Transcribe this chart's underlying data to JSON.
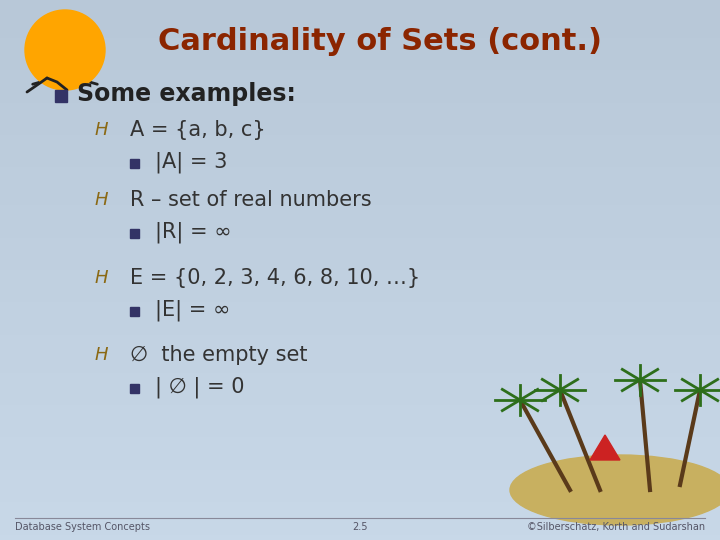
{
  "title": "Cardinality of Sets (cont.)",
  "title_color": "#8B2500",
  "title_fontsize": 22,
  "bg_color_top": "#b8c8d8",
  "bg_color_bottom": "#c8d8e8",
  "bullet1_text": "Some examples:",
  "bullet1_color": "#222222",
  "bullet1_fontsize": 17,
  "items": [
    {
      "level": 1,
      "text": "A = {a, b, c}",
      "color": "#333333",
      "fontsize": 15
    },
    {
      "level": 2,
      "text": "|A| = 3",
      "color": "#333333",
      "fontsize": 15
    },
    {
      "level": 1,
      "text": "R – set of real numbers",
      "color": "#333333",
      "fontsize": 15
    },
    {
      "level": 2,
      "text": "|R| = ∞",
      "color": "#333333",
      "fontsize": 15
    },
    {
      "level": 1,
      "text": "E = {0, 2, 3, 4, 6, 8, 10, …}",
      "color": "#333333",
      "fontsize": 15
    },
    {
      "level": 2,
      "text": "|E| = ∞",
      "color": "#333333",
      "fontsize": 15
    },
    {
      "level": 1,
      "text": "∅  the empty set",
      "color": "#333333",
      "fontsize": 15
    },
    {
      "level": 2,
      "text": "| ∅ | = 0",
      "color": "#333333",
      "fontsize": 15
    }
  ],
  "footer_left": "Database System Concepts",
  "footer_center": "2.5",
  "footer_right": "©Silberschatz, Korth and Sudarshan",
  "footer_color": "#555566",
  "footer_fontsize": 7,
  "square_bullet_color": "#333366",
  "hand_bullet_color": "#8B6914",
  "sun_color": "#FFA500",
  "bird_color": "#222222"
}
